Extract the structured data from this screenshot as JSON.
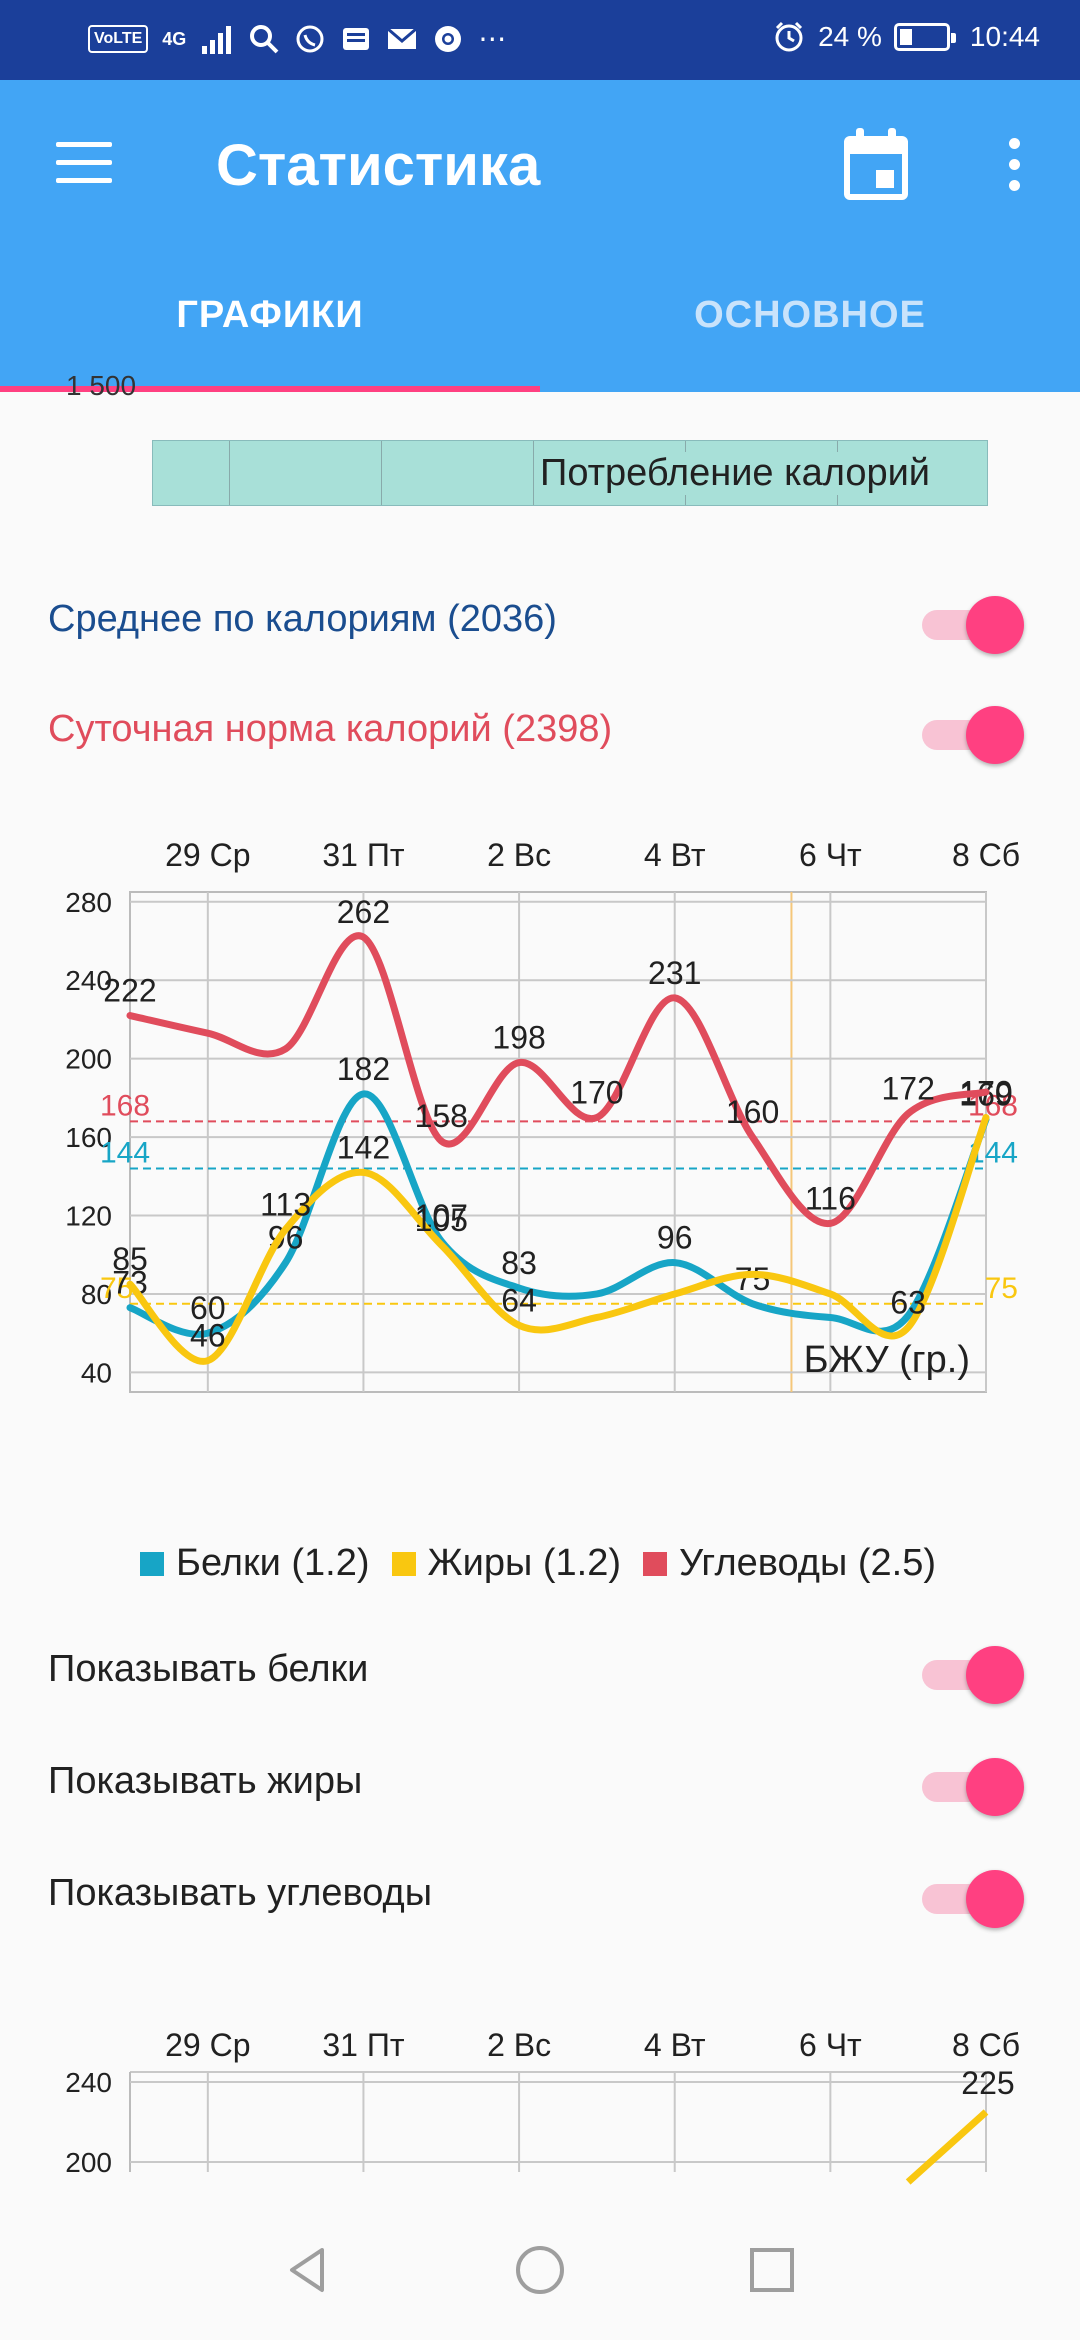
{
  "statusbar": {
    "network": "4G",
    "volte": "VoLTE",
    "battery": "24 %",
    "time": "10:44"
  },
  "appbar": {
    "title": "Статистика",
    "tabs": [
      {
        "label": "ГРАФИКИ",
        "active": true
      },
      {
        "label": "ОСНОВНОЕ",
        "active": false
      }
    ]
  },
  "colors": {
    "primary": "#42a5f5",
    "statusbar": "#1b3f9a",
    "accent": "#ff4081",
    "protein": "#17a5c6",
    "fat": "#f9c710",
    "carbs": "#e04c5c",
    "avg_calories": "#1a4d8f",
    "norm_calories": "#e04c5c",
    "chart_bg_fill": "#a8e0d8"
  },
  "calorie_chart_fragment": {
    "ytick": "1 500",
    "label": "Потребление калорий"
  },
  "toggles_calories": [
    {
      "label": "Среднее по калориям (2036)",
      "on": true
    },
    {
      "label": "Суточная норма калорий (2398)",
      "on": true
    }
  ],
  "chart_data": [
    {
      "type": "line",
      "title": "",
      "annotation": "БЖУ (гр.)",
      "x_tick_labels": [
        "29 Ср",
        "31 Пт",
        "2 Вс",
        "4 Вт",
        "6 Чт",
        "8 Сб"
      ],
      "x": [
        0,
        1,
        2,
        3,
        4,
        5,
        6,
        7,
        8,
        9,
        10,
        11
      ],
      "ylim": [
        30,
        285
      ],
      "yticks": [
        40,
        80,
        120,
        160,
        200,
        240,
        280
      ],
      "grid": true,
      "series": [
        {
          "name": "Белки (1.2)",
          "values": [
            73,
            60,
            96,
            182,
            107,
            83,
            80,
            96,
            75,
            68,
            69,
            169
          ],
          "labels": [
            "73",
            "60",
            "96",
            "182",
            "107",
            "83",
            "",
            "96",
            "75",
            "",
            "",
            "169"
          ]
        },
        {
          "name": "Жиры (1.2)",
          "values": [
            85,
            46,
            113,
            142,
            105,
            64,
            68,
            80,
            90,
            80,
            63,
            170
          ],
          "labels": [
            "85",
            "46",
            "113",
            "142",
            "105",
            "64",
            "",
            "",
            "",
            "",
            "63",
            "170"
          ]
        },
        {
          "name": "Углеводы (2.5)",
          "values": [
            222,
            213,
            205,
            262,
            158,
            198,
            170,
            231,
            160,
            116,
            172,
            183
          ],
          "labels": [
            "222",
            "",
            "",
            "262",
            "158",
            "198",
            "170",
            "231",
            "160",
            "116",
            "172",
            ""
          ]
        }
      ],
      "reference_lines": [
        {
          "value": 168,
          "label": "168",
          "series": "Углеводы (2.5)"
        },
        {
          "value": 144,
          "label": "144",
          "series": "Белки (1.2)"
        },
        {
          "value": 75,
          "label": "75",
          "series": "Жиры (1.2)"
        }
      ],
      "legend": "bottom"
    },
    {
      "type": "line",
      "x_tick_labels": [
        "29 Ср",
        "31 Пт",
        "2 Вс",
        "4 Вт",
        "6 Чт",
        "8 Сб"
      ],
      "yticks": [
        200,
        240
      ],
      "visible_label": "225",
      "ylim": [
        195,
        245
      ],
      "series": [
        {
          "name": "",
          "values": [
            null,
            null,
            null,
            null,
            null,
            null,
            null,
            null,
            null,
            null,
            190,
            225
          ]
        }
      ]
    }
  ],
  "toggles_macros": [
    {
      "label": "Показывать белки",
      "on": true
    },
    {
      "label": "Показывать жиры",
      "on": true
    },
    {
      "label": "Показывать углеводы",
      "on": true
    }
  ]
}
